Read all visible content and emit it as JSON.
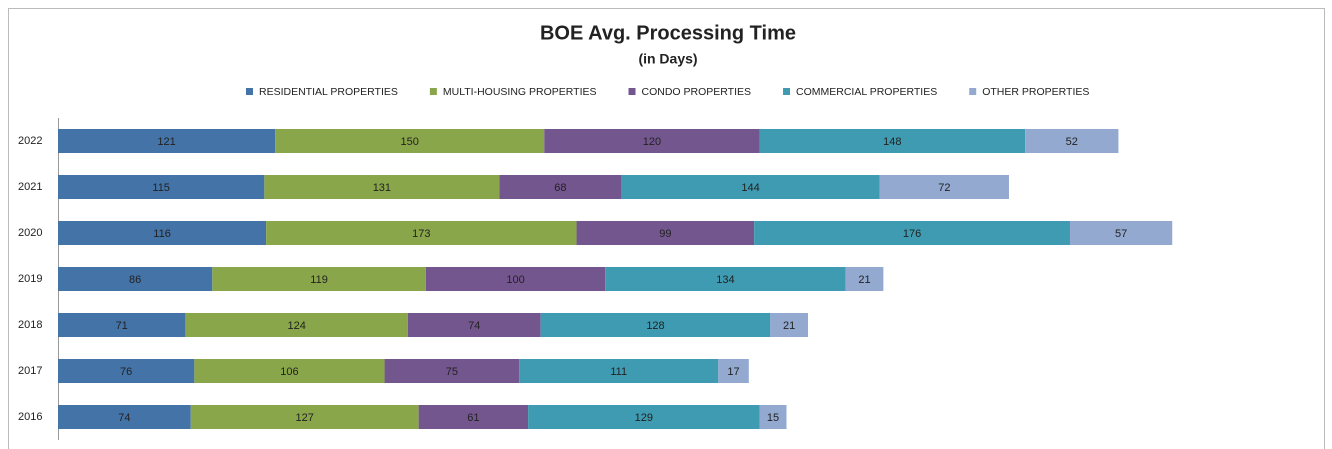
{
  "chart_data": {
    "type": "stacked-barh",
    "title": "BOE Avg. Processing Time",
    "subtitle": "(in Days)",
    "categories": [
      "2022",
      "2021",
      "2020",
      "2019",
      "2018",
      "2017",
      "2016"
    ],
    "series": [
      {
        "name": "RESIDENTIAL PROPERTIES",
        "color": "#4473a8",
        "values": [
          121,
          115,
          116,
          86,
          71,
          76,
          74
        ]
      },
      {
        "name": "MULTI-HOUSING PROPERTIES",
        "color": "#8aa64b",
        "values": [
          150,
          131,
          173,
          119,
          124,
          106,
          127
        ]
      },
      {
        "name": "CONDO PROPERTIES",
        "color": "#74568f",
        "values": [
          120,
          68,
          99,
          100,
          74,
          75,
          61
        ]
      },
      {
        "name": "COMMERCIAL PROPERTIES",
        "color": "#3f9bb1",
        "values": [
          148,
          144,
          176,
          134,
          128,
          111,
          129
        ]
      },
      {
        "name": "OTHER PROPERTIES",
        "color": "#93a9d0",
        "values": [
          52,
          72,
          57,
          21,
          21,
          17,
          15
        ]
      }
    ],
    "xlim": [
      0,
      700
    ],
    "legend": "top"
  }
}
